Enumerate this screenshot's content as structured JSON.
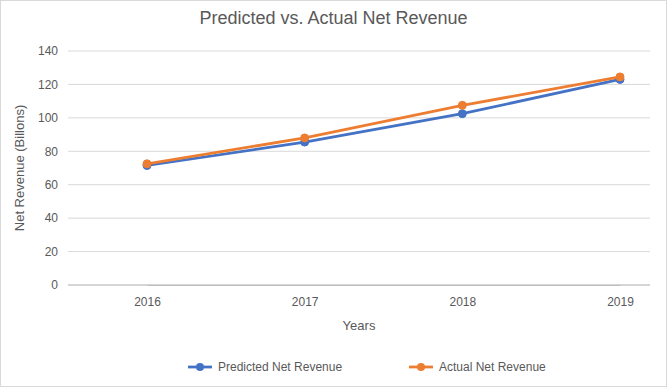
{
  "chart_data": {
    "type": "line",
    "title": "Predicted vs. Actual Net Revenue",
    "x_label": "Years",
    "y_label": "Net Revenue (Billons)",
    "categories": [
      "2016",
      "2017",
      "2018",
      "2019"
    ],
    "series": [
      {
        "name": "Predicted Net Revenue",
        "color": "#4472c4",
        "values": [
          71.5,
          85.5,
          102.5,
          123
        ],
        "marker": "circle"
      },
      {
        "name": "Actual Net Revenue",
        "color": "#ed7d31",
        "values": [
          72.5,
          88,
          107.5,
          124.5
        ],
        "marker": "circle"
      }
    ],
    "ylim": [
      0,
      140
    ],
    "yticks": [
      0,
      20,
      40,
      60,
      80,
      100,
      120,
      140
    ],
    "grid": true,
    "legend": "bottom"
  }
}
